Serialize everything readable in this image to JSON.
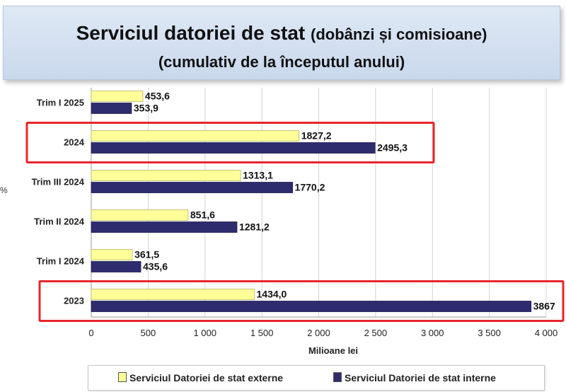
{
  "title": {
    "main": "Serviciul datoriei de stat",
    "qualifier": "(dobânzi și comisioane)",
    "subtitle": "(cumulativ de la începutul anului)"
  },
  "chart_data": {
    "type": "bar",
    "orientation": "horizontal",
    "categories": [
      "Trim I 2025",
      "2024",
      "Trim III 2024",
      "Trim II 2024",
      "Trim I 2024",
      "2023"
    ],
    "series": [
      {
        "name": "Serviciul Datoriei de stat externe",
        "values": [
          453.6,
          1827.2,
          1313.1,
          851.6,
          361.5,
          1434.0
        ],
        "labels": [
          "453,6",
          "1827,2",
          "1313,1",
          "851,6",
          "361,5",
          "1434,0"
        ],
        "color": "#ffff99"
      },
      {
        "name": "Serviciul Datoriei de stat interne",
        "values": [
          353.9,
          2495.3,
          1770.2,
          1281.2,
          435.6,
          3867
        ],
        "labels": [
          "353,9",
          "2495,3",
          "1770,2",
          "1281,2",
          "435,6",
          "3867"
        ],
        "color": "#2e2c6e"
      }
    ],
    "xlabel": "Milioane lei",
    "xlim": [
      0,
      4000
    ],
    "xticks": [
      0,
      500,
      1000,
      1500,
      2000,
      2500,
      3000,
      3500,
      4000
    ],
    "xtick_labels": [
      "0",
      "500",
      "1 000",
      "1 500",
      "2 000",
      "2 500",
      "3 000",
      "3 500",
      "4 000"
    ],
    "highlighted_categories": [
      "2024",
      "2023"
    ],
    "highlight_color": "#e8252b",
    "grid": "vertical",
    "legend_position": "bottom"
  }
}
